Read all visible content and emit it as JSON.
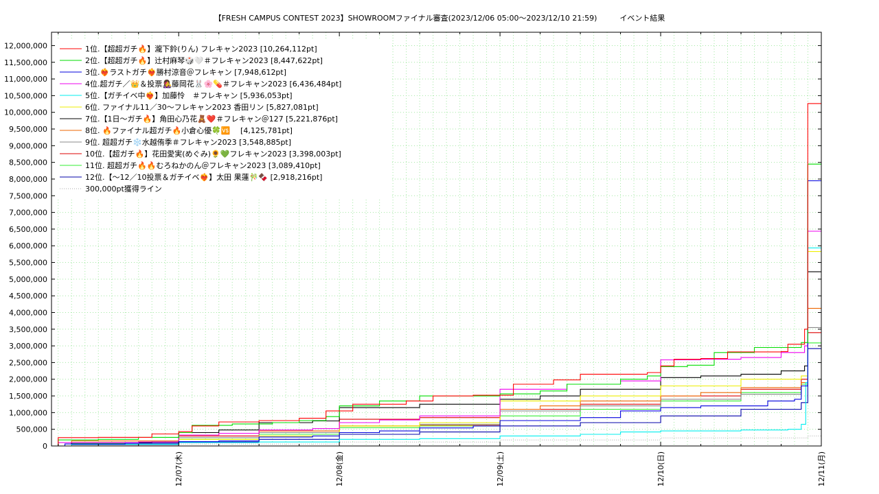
{
  "chart_data": {
    "type": "line",
    "title": "【FRESH CAMPUS CONTEST 2023】SHOWROOMファイナル審査(2023/12/06 05:00～2023/12/10 21:59)　　　イベント結果",
    "xlabel": "",
    "ylabel": "",
    "x_ticks": [
      "12/07(木)",
      "12/08(金)",
      "12/09(土)",
      "12/10(日)",
      "12/11(月)"
    ],
    "x_range": [
      "2023-12-06 05:00",
      "2023-12-11 00:00"
    ],
    "y_ticks": [
      "0",
      "500,000",
      "1,000,000",
      "1,500,000",
      "2,000,000",
      "2,500,000",
      "3,000,000",
      "3,500,000",
      "4,000,000",
      "4,500,000",
      "5,000,000",
      "5,500,000",
      "6,000,000",
      "6,500,000",
      "7,000,000",
      "7,500,000",
      "8,000,000",
      "8,500,000",
      "9,000,000",
      "9,500,000",
      "10,000,000",
      "10,500,000",
      "11,000,000",
      "11,500,000",
      "12,000,000"
    ],
    "ylim": [
      0,
      12400000
    ],
    "grid": true,
    "legend_position": "top-left",
    "colors": {
      "axis": "#000000",
      "grid": "#a0e8a0"
    },
    "series": [
      {
        "name": "  1位.【超超ガチ🔥】瀧下鈴(りん) フレキャン2023 [10,264,112pt]",
        "color": "#ff0000",
        "points": [
          [
            "2023-12-06 05:00",
            0
          ],
          [
            "2023-12-06 06:00",
            250000
          ],
          [
            "2023-12-06 12:00",
            260000
          ],
          [
            "2023-12-06 20:00",
            360000
          ],
          [
            "2023-12-07 00:00",
            430000
          ],
          [
            "2023-12-07 02:00",
            600000
          ],
          [
            "2023-12-07 06:00",
            720000
          ],
          [
            "2023-12-07 12:00",
            760000
          ],
          [
            "2023-12-07 18:00",
            830000
          ],
          [
            "2023-12-07 22:00",
            1050000
          ],
          [
            "2023-12-08 02:00",
            1250000
          ],
          [
            "2023-12-08 10:00",
            1350000
          ],
          [
            "2023-12-08 14:00",
            1500000
          ],
          [
            "2023-12-08 20:00",
            1520000
          ],
          [
            "2023-12-09 02:00",
            1850000
          ],
          [
            "2023-12-09 08:00",
            1980000
          ],
          [
            "2023-12-09 12:00",
            2150000
          ],
          [
            "2023-12-09 22:00",
            2200000
          ],
          [
            "2023-12-10 00:00",
            2400000
          ],
          [
            "2023-12-10 02:00",
            2600000
          ],
          [
            "2023-12-10 06:00",
            2620000
          ],
          [
            "2023-12-10 10:00",
            2820000
          ],
          [
            "2023-12-10 18:00",
            2830000
          ],
          [
            "2023-12-10 19:00",
            3050000
          ],
          [
            "2023-12-10 21:30",
            3500000
          ],
          [
            "2023-12-10 21:59",
            10264112
          ],
          [
            "2023-12-11 00:00",
            10264112
          ]
        ]
      },
      {
        "name": "  2位.【超超ガチ🔥】辻村麻琴🎲🤍＃フレキャン2023 [8,447,622pt]",
        "color": "#00dd00",
        "points": [
          [
            "2023-12-06 05:00",
            0
          ],
          [
            "2023-12-06 06:00",
            180000
          ],
          [
            "2023-12-06 12:00",
            200000
          ],
          [
            "2023-12-06 18:00",
            260000
          ],
          [
            "2023-12-07 00:00",
            400000
          ],
          [
            "2023-12-07 02:00",
            620000
          ],
          [
            "2023-12-07 08:00",
            660000
          ],
          [
            "2023-12-07 14:00",
            700000
          ],
          [
            "2023-12-07 18:00",
            760000
          ],
          [
            "2023-12-07 22:00",
            880000
          ],
          [
            "2023-12-08 00:00",
            1200000
          ],
          [
            "2023-12-08 06:00",
            1350000
          ],
          [
            "2023-12-08 12:00",
            1500000
          ],
          [
            "2023-12-09 00:00",
            1560000
          ],
          [
            "2023-12-09 06:00",
            1650000
          ],
          [
            "2023-12-09 10:00",
            1850000
          ],
          [
            "2023-12-09 18:00",
            2000000
          ],
          [
            "2023-12-09 22:00",
            2100000
          ],
          [
            "2023-12-10 00:00",
            2380000
          ],
          [
            "2023-12-10 04:00",
            2420000
          ],
          [
            "2023-12-10 08:00",
            2800000
          ],
          [
            "2023-12-10 14:00",
            2950000
          ],
          [
            "2023-12-10 21:00",
            3100000
          ],
          [
            "2023-12-10 21:59",
            8447622
          ],
          [
            "2023-12-11 00:00",
            8447622
          ]
        ]
      },
      {
        "name": "  3位.❤️‍🔥ラストガチ❤️‍🔥勝村涼音＠フレキャン [7,948,612pt]",
        "color": "#0000dd",
        "points": [
          [
            "2023-12-06 05:00",
            0
          ],
          [
            "2023-12-06 07:00",
            60000
          ],
          [
            "2023-12-06 16:00",
            80000
          ],
          [
            "2023-12-07 00:00",
            130000
          ],
          [
            "2023-12-07 06:00",
            150000
          ],
          [
            "2023-12-07 12:00",
            270000
          ],
          [
            "2023-12-07 20:00",
            300000
          ],
          [
            "2023-12-08 00:00",
            400000
          ],
          [
            "2023-12-08 06:00",
            450000
          ],
          [
            "2023-12-08 12:00",
            540000
          ],
          [
            "2023-12-08 20:00",
            600000
          ],
          [
            "2023-12-09 00:00",
            760000
          ],
          [
            "2023-12-09 06:00",
            760000
          ],
          [
            "2023-12-09 12:00",
            850000
          ],
          [
            "2023-12-09 18:00",
            1050000
          ],
          [
            "2023-12-10 00:00",
            1150000
          ],
          [
            "2023-12-10 06:00",
            1200000
          ],
          [
            "2023-12-10 12:00",
            1200000
          ],
          [
            "2023-12-10 16:00",
            1350000
          ],
          [
            "2023-12-10 20:00",
            1400000
          ],
          [
            "2023-12-10 21:00",
            1800000
          ],
          [
            "2023-12-10 21:59",
            7948612
          ],
          [
            "2023-12-11 00:00",
            7948612
          ]
        ]
      },
      {
        "name": "  4位.超ガチ／👑＆投票👩‍🎤藤岡花🐰🌸💊＃フレキャン2023 [6,436,484pt]",
        "color": "#ee00ee",
        "points": [
          [
            "2023-12-06 05:00",
            0
          ],
          [
            "2023-12-06 06:00",
            100000
          ],
          [
            "2023-12-06 18:00",
            120000
          ],
          [
            "2023-12-07 00:00",
            330000
          ],
          [
            "2023-12-07 06:00",
            380000
          ],
          [
            "2023-12-07 12:00",
            480000
          ],
          [
            "2023-12-07 20:00",
            520000
          ],
          [
            "2023-12-08 00:00",
            700000
          ],
          [
            "2023-12-08 06:00",
            780000
          ],
          [
            "2023-12-08 12:00",
            900000
          ],
          [
            "2023-12-09 00:00",
            1700000
          ],
          [
            "2023-12-09 06:00",
            1700000
          ],
          [
            "2023-12-09 10:00",
            1850000
          ],
          [
            "2023-12-09 18:00",
            1950000
          ],
          [
            "2023-12-10 00:00",
            2580000
          ],
          [
            "2023-12-10 06:00",
            2600000
          ],
          [
            "2023-12-10 12:00",
            2650000
          ],
          [
            "2023-12-10 18:00",
            2800000
          ],
          [
            "2023-12-10 21:30",
            3000000
          ],
          [
            "2023-12-10 21:59",
            6436484
          ],
          [
            "2023-12-11 00:00",
            6436484
          ]
        ]
      },
      {
        "name": "  5位.【ガチイベ中❤️‍🔥】加藤怜　＃フレキャン [5,936,053pt]",
        "color": "#00eeee",
        "points": [
          [
            "2023-12-06 05:00",
            0
          ],
          [
            "2023-12-06 08:00",
            50000
          ],
          [
            "2023-12-07 00:00",
            100000
          ],
          [
            "2023-12-07 12:00",
            120000
          ],
          [
            "2023-12-08 00:00",
            200000
          ],
          [
            "2023-12-08 12:00",
            220000
          ],
          [
            "2023-12-09 00:00",
            300000
          ],
          [
            "2023-12-09 12:00",
            350000
          ],
          [
            "2023-12-09 18:00",
            420000
          ],
          [
            "2023-12-10 00:00",
            450000
          ],
          [
            "2023-12-10 12:00",
            480000
          ],
          [
            "2023-12-10 19:00",
            500000
          ],
          [
            "2023-12-10 21:00",
            650000
          ],
          [
            "2023-12-10 21:40",
            1900000
          ],
          [
            "2023-12-10 21:59",
            5936053
          ],
          [
            "2023-12-11 00:00",
            5936053
          ]
        ]
      },
      {
        "name": "  6位. ファイナル11／30〜フレキャン2023 香田リン [5,827,081pt]",
        "color": "#eeee00",
        "points": [
          [
            "2023-12-06 05:00",
            0
          ],
          [
            "2023-12-06 08:00",
            50000
          ],
          [
            "2023-12-07 00:00",
            200000
          ],
          [
            "2023-12-07 12:00",
            300000
          ],
          [
            "2023-12-08 00:00",
            600000
          ],
          [
            "2023-12-08 12:00",
            700000
          ],
          [
            "2023-12-09 00:00",
            1350000
          ],
          [
            "2023-12-09 12:00",
            1500000
          ],
          [
            "2023-12-10 00:00",
            1800000
          ],
          [
            "2023-12-10 12:00",
            2000000
          ],
          [
            "2023-12-10 21:00",
            2100000
          ],
          [
            "2023-12-10 21:59",
            5827081
          ],
          [
            "2023-12-11 00:00",
            5827081
          ]
        ]
      },
      {
        "name": "  7位.【1日〜ガチ🔥】角田心乃花🧸❤️＃フレキャン＠127 [5,221,876pt]",
        "color": "#000000",
        "points": [
          [
            "2023-12-06 05:00",
            0
          ],
          [
            "2023-12-06 08:00",
            100000
          ],
          [
            "2023-12-06 20:00",
            120000
          ],
          [
            "2023-12-07 00:00",
            400000
          ],
          [
            "2023-12-07 06:00",
            480000
          ],
          [
            "2023-12-07 12:00",
            700000
          ],
          [
            "2023-12-07 20:00",
            750000
          ],
          [
            "2023-12-08 00:00",
            1150000
          ],
          [
            "2023-12-08 12:00",
            1250000
          ],
          [
            "2023-12-09 00:00",
            1400000
          ],
          [
            "2023-12-09 06:00",
            1500000
          ],
          [
            "2023-12-09 12:00",
            1700000
          ],
          [
            "2023-12-10 00:00",
            2050000
          ],
          [
            "2023-12-10 06:00",
            2100000
          ],
          [
            "2023-12-10 12:00",
            2150000
          ],
          [
            "2023-12-10 18:00",
            2250000
          ],
          [
            "2023-12-10 21:30",
            2400000
          ],
          [
            "2023-12-10 21:59",
            5221876
          ],
          [
            "2023-12-11 00:00",
            5221876
          ]
        ]
      },
      {
        "name": "  8位. 🔥ファイナル超ガチ🔥小倉心優🍀🆚　 [4,125,781pt]",
        "color": "#ee6600",
        "points": [
          [
            "2023-12-06 05:00",
            0
          ],
          [
            "2023-12-06 08:00",
            150000
          ],
          [
            "2023-12-06 20:00",
            150000
          ],
          [
            "2023-12-07 00:00",
            330000
          ],
          [
            "2023-12-07 06:00",
            380000
          ],
          [
            "2023-12-07 12:00",
            450000
          ],
          [
            "2023-12-08 00:00",
            600000
          ],
          [
            "2023-12-08 12:00",
            620000
          ],
          [
            "2023-12-09 00:00",
            1100000
          ],
          [
            "2023-12-09 06:00",
            1200000
          ],
          [
            "2023-12-09 12:00",
            1350000
          ],
          [
            "2023-12-10 00:00",
            1500000
          ],
          [
            "2023-12-10 06:00",
            1600000
          ],
          [
            "2023-12-10 12:00",
            1750000
          ],
          [
            "2023-12-10 21:00",
            1900000
          ],
          [
            "2023-12-10 21:59",
            4125781
          ],
          [
            "2023-12-11 00:00",
            4125781
          ]
        ]
      },
      {
        "name": "  9位. 超超ガチ❄️水越侑季＃フレキャン2023 [3,548,885pt]",
        "color": "#888888",
        "points": [
          [
            "2023-12-06 05:00",
            0
          ],
          [
            "2023-12-06 08:00",
            100000
          ],
          [
            "2023-12-07 00:00",
            250000
          ],
          [
            "2023-12-07 12:00",
            400000
          ],
          [
            "2023-12-08 00:00",
            600000
          ],
          [
            "2023-12-08 12:00",
            650000
          ],
          [
            "2023-12-09 00:00",
            1050000
          ],
          [
            "2023-12-09 12:00",
            1200000
          ],
          [
            "2023-12-10 00:00",
            1400000
          ],
          [
            "2023-12-10 12:00",
            1550000
          ],
          [
            "2023-12-10 21:00",
            1800000
          ],
          [
            "2023-12-10 21:59",
            3548885
          ],
          [
            "2023-12-11 00:00",
            3548885
          ]
        ]
      },
      {
        "name": "10位.【超ガチ🔥】花田愛実(めぐみ)🌻💚フレキャン2023 [3,398,003pt]",
        "color": "#dd0000",
        "points": [
          [
            "2023-12-06 05:00",
            0
          ],
          [
            "2023-12-06 08:00",
            100000
          ],
          [
            "2023-12-07 00:00",
            300000
          ],
          [
            "2023-12-07 12:00",
            450000
          ],
          [
            "2023-12-08 00:00",
            800000
          ],
          [
            "2023-12-08 12:00",
            850000
          ],
          [
            "2023-12-09 00:00",
            1100000
          ],
          [
            "2023-12-09 12:00",
            1250000
          ],
          [
            "2023-12-10 00:00",
            1500000
          ],
          [
            "2023-12-10 12:00",
            1700000
          ],
          [
            "2023-12-10 21:00",
            2000000
          ],
          [
            "2023-12-10 21:59",
            3398003
          ],
          [
            "2023-12-11 00:00",
            3398003
          ]
        ]
      },
      {
        "name": "11位. 超超ガチ🔥🔥むろねかのん＠フレキャン2023 [3,089,410pt]",
        "color": "#33ee33",
        "points": [
          [
            "2023-12-06 05:00",
            0
          ],
          [
            "2023-12-06 08:00",
            80000
          ],
          [
            "2023-12-07 00:00",
            200000
          ],
          [
            "2023-12-07 12:00",
            350000
          ],
          [
            "2023-12-08 00:00",
            550000
          ],
          [
            "2023-12-08 12:00",
            600000
          ],
          [
            "2023-12-09 00:00",
            900000
          ],
          [
            "2023-12-09 12:00",
            1100000
          ],
          [
            "2023-12-10 00:00",
            1350000
          ],
          [
            "2023-12-10 12:00",
            1600000
          ],
          [
            "2023-12-10 21:00",
            1850000
          ],
          [
            "2023-12-10 21:59",
            3089410
          ],
          [
            "2023-12-11 00:00",
            3089410
          ]
        ]
      },
      {
        "name": "12位.【〜12／10投票＆ガチイベ❤️‍🔥】太田 果蓮🎋🍫 [2,918,216pt]",
        "color": "#0000aa",
        "points": [
          [
            "2023-12-06 05:00",
            0
          ],
          [
            "2023-12-06 08:00",
            40000
          ],
          [
            "2023-12-07 00:00",
            120000
          ],
          [
            "2023-12-07 12:00",
            200000
          ],
          [
            "2023-12-08 00:00",
            350000
          ],
          [
            "2023-12-08 12:00",
            420000
          ],
          [
            "2023-12-09 00:00",
            600000
          ],
          [
            "2023-12-09 12:00",
            700000
          ],
          [
            "2023-12-10 00:00",
            900000
          ],
          [
            "2023-12-10 12:00",
            1100000
          ],
          [
            "2023-12-10 21:00",
            1300000
          ],
          [
            "2023-12-10 21:59",
            2918216
          ],
          [
            "2023-12-11 00:00",
            2918216
          ]
        ]
      }
    ],
    "reference_line": {
      "name": "300,000pt獲得ライン",
      "color": "#aaaaaa",
      "points": [
        [
          "2023-12-06 05:00",
          0
        ],
        [
          "2023-12-07 00:00",
          60000
        ],
        [
          "2023-12-08 00:00",
          120000
        ],
        [
          "2023-12-09 00:00",
          180000
        ],
        [
          "2023-12-10 00:00",
          240000
        ],
        [
          "2023-12-10 21:59",
          300000
        ],
        [
          "2023-12-11 00:00",
          300000
        ]
      ]
    }
  }
}
